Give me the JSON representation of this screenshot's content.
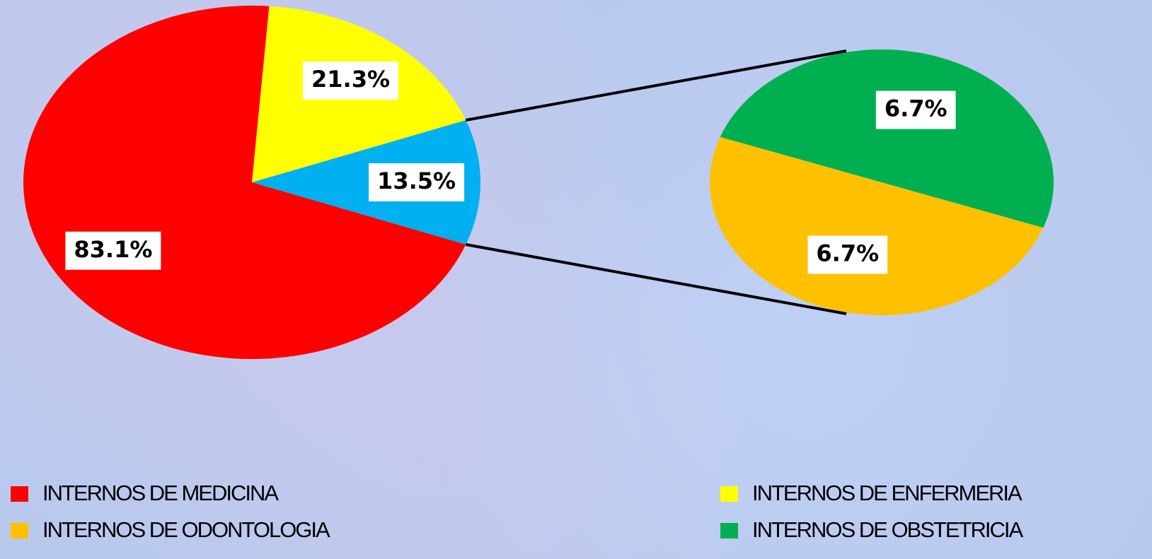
{
  "chart_data": {
    "type": "pie_of_pie",
    "categories": [
      "INTERNOS DE MEDICINA",
      "INTERNOS DE ENFERMERIA"
    ],
    "values": [
      83.1,
      21.3
    ],
    "value_labels": [
      "83.1%",
      "21.3%"
    ],
    "colors": [
      "#ff0000",
      "#ffff00"
    ],
    "other_value": 13.5,
    "other_value_label": "13.5%",
    "other_color": "#00b0f0",
    "sub_categories": [
      "INTERNOS DE ODONTOLOGIA",
      "INTERNOS DE OBSTETRICIA"
    ],
    "sub_values": [
      6.7,
      6.7
    ],
    "sub_value_labels": [
      "6.7%",
      "6.7%"
    ],
    "sub_colors": [
      "#ffc000",
      "#00b050"
    ]
  }
}
